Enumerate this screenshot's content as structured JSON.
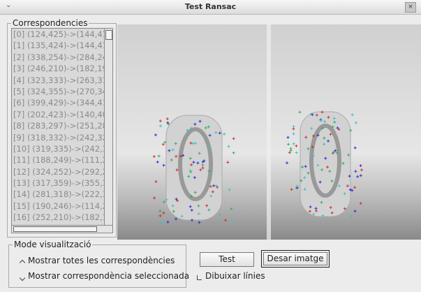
{
  "window": {
    "title": "Test Ransac"
  },
  "correspondences": {
    "label": "Correspondencies",
    "items": [
      "[0] (124,425)->(144,41",
      "[1] (135,424)->(144,41",
      "[2] (338,254)->(284,24",
      "[3] (246,210)->(182,19",
      "[4] (323,333)->(263,31",
      "[5] (324,355)->(270,34",
      "[6] (399,429)->(344,41",
      "[7] (202,423)->(140,40",
      "[8] (283,297)->(251,28",
      "[9] (318,332)->(242,32",
      "[10] (319,335)->(242,3",
      "[11] (188,249)->(111,2",
      "[12] (324,252)->(292,2",
      "[13] (317,359)->(355,3",
      "[14] (281,318)->(222,3",
      "[15] (190,246)->(114,2",
      "[16] (252,210)->(182,1"
    ]
  },
  "mode": {
    "label": "Mode visualització",
    "options": [
      "Mostrar totes les correspondències",
      "Mostrar correspondència seleccionada"
    ]
  },
  "buttons": {
    "test": "Test",
    "save": "Desar imatge"
  },
  "checkbox": {
    "label": "Dibuixar línies"
  }
}
